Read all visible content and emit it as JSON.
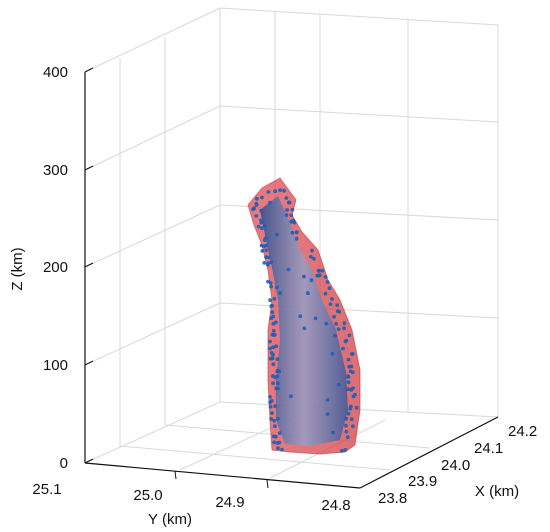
{
  "chart_data": {
    "type": "3d-volume",
    "title": "",
    "xlabel": "X (km)",
    "ylabel": "Y (km)",
    "zlabel": "Z (km)",
    "x_ticks": [
      "23.8",
      "23.9",
      "24.0",
      "24.1",
      "24.2"
    ],
    "y_ticks": [
      "25.1",
      "25.0",
      "24.9",
      "24.8"
    ],
    "z_ticks": [
      "0",
      "100",
      "200",
      "300",
      "400"
    ],
    "xlim": [
      23.8,
      24.2
    ],
    "ylim": [
      24.8,
      25.1
    ],
    "zlim": [
      0,
      400
    ],
    "grid": true,
    "colors": {
      "envelope": "#d9464a",
      "core": "#2b4a8c",
      "points": "#1f5fb5",
      "grid": "#d8d8d8",
      "axis": "#111111"
    }
  }
}
